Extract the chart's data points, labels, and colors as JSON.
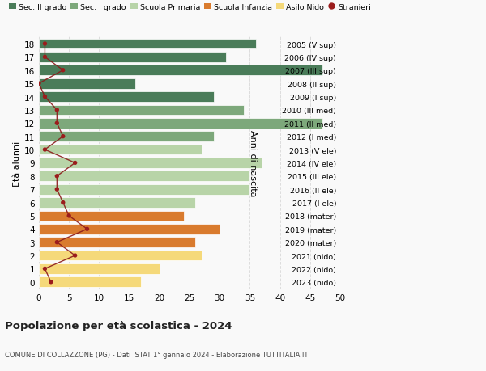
{
  "ages": [
    18,
    17,
    16,
    15,
    14,
    13,
    12,
    11,
    10,
    9,
    8,
    7,
    6,
    5,
    4,
    3,
    2,
    1,
    0
  ],
  "bar_values": [
    36,
    31,
    47,
    16,
    29,
    34,
    47,
    29,
    27,
    37,
    35,
    35,
    26,
    24,
    30,
    26,
    27,
    20,
    17
  ],
  "stranieri": [
    1,
    1,
    4,
    0,
    1,
    3,
    3,
    4,
    1,
    6,
    3,
    3,
    4,
    5,
    8,
    3,
    6,
    1,
    2
  ],
  "right_labels": [
    "2005 (V sup)",
    "2006 (IV sup)",
    "2007 (III sup)",
    "2008 (II sup)",
    "2009 (I sup)",
    "2010 (III med)",
    "2011 (II med)",
    "2012 (I med)",
    "2013 (V ele)",
    "2014 (IV ele)",
    "2015 (III ele)",
    "2016 (II ele)",
    "2017 (I ele)",
    "2018 (mater)",
    "2019 (mater)",
    "2020 (mater)",
    "2021 (nido)",
    "2022 (nido)",
    "2023 (nido)"
  ],
  "bar_colors": [
    "#4a7c59",
    "#4a7c59",
    "#4a7c59",
    "#4a7c59",
    "#4a7c59",
    "#7da87b",
    "#7da87b",
    "#7da87b",
    "#b8d4a8",
    "#b8d4a8",
    "#b8d4a8",
    "#b8d4a8",
    "#b8d4a8",
    "#d97b2e",
    "#d97b2e",
    "#d97b2e",
    "#f5d97a",
    "#f5d97a",
    "#f5d97a"
  ],
  "legend_labels": [
    "Sec. II grado",
    "Sec. I grado",
    "Scuola Primaria",
    "Scuola Infanzia",
    "Asilo Nido",
    "Stranieri"
  ],
  "legend_colors": [
    "#4a7c59",
    "#7da87b",
    "#b8d4a8",
    "#d97b2e",
    "#f5d97a",
    "#9b1c1c"
  ],
  "title_bold": "Popolazione per età scolastica - 2024",
  "subtitle": "COMUNE DI COLLAZZONE (PG) - Dati ISTAT 1° gennaio 2024 - Elaborazione TUTTITALIA.IT",
  "ylabel_left": "Età alunni",
  "ylabel_right": "Anni di nascita",
  "xlim": [
    0,
    50
  ],
  "background_color": "#f9f9f9",
  "grid_color": "#dddddd",
  "stranieri_line_color": "#8b1a1a",
  "stranieri_dot_color": "#9b1c1c",
  "bar_height": 0.78
}
